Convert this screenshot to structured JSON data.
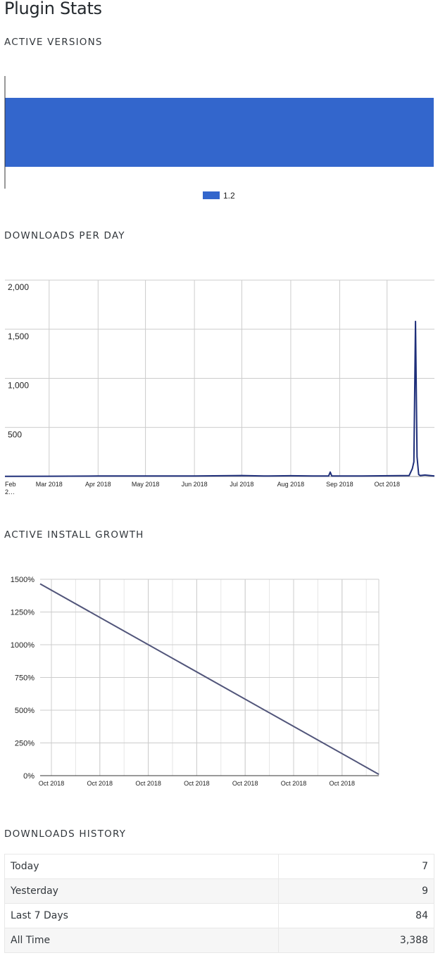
{
  "page_title": "Plugin Stats",
  "sections": {
    "active_versions": "ACTIVE VERSIONS",
    "downloads_per_day": "DOWNLOADS PER DAY",
    "active_install_growth": "ACTIVE INSTALL GROWTH",
    "downloads_history": "DOWNLOADS HISTORY"
  },
  "colors": {
    "bar": "#3366cc",
    "downloads_line": "#1f2f7a",
    "growth_line": "#51557a",
    "grid": "#cccccc"
  },
  "chart_data": [
    {
      "type": "bar",
      "orientation": "horizontal",
      "categories": [
        "1.2"
      ],
      "values": [
        100
      ],
      "legend": [
        "1.2"
      ],
      "legend_position": "bottom",
      "xlim": [
        0,
        100
      ]
    },
    {
      "type": "line",
      "x_ticks": [
        "Feb 2…",
        "Mar 2018",
        "Apr 2018",
        "May 2018",
        "Jun 2018",
        "Jul 2018",
        "Aug 2018",
        "Sep 2018",
        "Oct 2018"
      ],
      "y_ticks": [
        "2,000",
        "1,500",
        "1,000",
        "500"
      ],
      "ylim": [
        0,
        2000
      ],
      "x": [
        "2018-02-01",
        "2018-03-01",
        "2018-04-01",
        "2018-05-01",
        "2018-06-01",
        "2018-07-01",
        "2018-07-15",
        "2018-08-01",
        "2018-08-15",
        "2018-08-25",
        "2018-08-26",
        "2018-08-27",
        "2018-09-15",
        "2018-10-15",
        "2018-10-17",
        "2018-10-18",
        "2018-10-19",
        "2018-10-20",
        "2018-10-21",
        "2018-10-22",
        "2018-10-25",
        "2018-10-31"
      ],
      "series": [
        {
          "values": [
            2,
            3,
            5,
            6,
            5,
            10,
            5,
            8,
            6,
            5,
            45,
            5,
            5,
            10,
            80,
            150,
            1580,
            200,
            20,
            10,
            15,
            5
          ]
        }
      ],
      "grid": true
    },
    {
      "type": "line",
      "x_ticks": [
        "Oct 2018",
        "Oct 2018",
        "Oct 2018",
        "Oct 2018",
        "Oct 2018",
        "Oct 2018",
        "Oct 2018"
      ],
      "y_ticks": [
        "1500%",
        "1250%",
        "1000%",
        "750%",
        "500%",
        "250%",
        "0%"
      ],
      "ylim": [
        0,
        1500
      ],
      "x": [
        0,
        1
      ],
      "series": [
        {
          "values": [
            1465,
            10
          ]
        }
      ],
      "grid": true
    }
  ],
  "downloads_history": [
    {
      "label": "Today",
      "value": "7"
    },
    {
      "label": "Yesterday",
      "value": "9"
    },
    {
      "label": "Last 7 Days",
      "value": "84"
    },
    {
      "label": "All Time",
      "value": "3,388"
    }
  ]
}
